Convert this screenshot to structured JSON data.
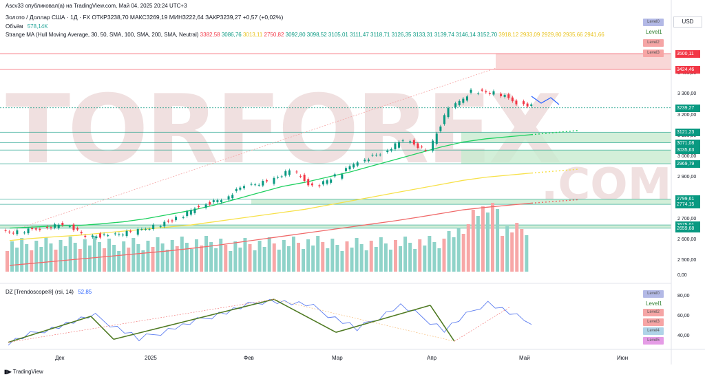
{
  "header": {
    "publish_line": "Ascv33 опубликовал(а) на TradingView.com, Май 04, 2025 20:24 UTC+3",
    "symbol_line": "Золото / Доллар США · 1Д · FX ОТКР3238,70 МАКС3269,19 МИН3222,64 ЗАКР3239,27 +0,57 (+0,02%)",
    "volume_label": "Объём",
    "volume_value": "578,14K",
    "ma_label": "Strange MA (Hull Moving Average, 30, 50, SMA, 100, SMA, 200, SMA, Neutral)",
    "ma_values": [
      "3382,58",
      "3086,76",
      "3013,11",
      "2750,82",
      "3092,80",
      "3098,52",
      "3105,01",
      "3111,47",
      "3118,71",
      "3126,35",
      "3133,31",
      "3139,74",
      "3146,14",
      "3152,70",
      "3918,12",
      "2933,09",
      "2929,80",
      "2935,66",
      "2941,66"
    ],
    "ma_colors": [
      "#f23645",
      "#089981",
      "#e8c21b",
      "#f23645",
      "#089981",
      "#089981",
      "#089981",
      "#089981",
      "#089981",
      "#089981",
      "#089981",
      "#089981",
      "#089981",
      "#089981",
      "#e8c21b",
      "#e8c21b",
      "#e8c21b",
      "#e8c21b",
      "#e8c21b"
    ]
  },
  "currency": "USD",
  "watermark": {
    "main": "TORFOREX",
    "sub": ".COM"
  },
  "levels_top": [
    "Level0",
    "Level1",
    "Level2",
    "Level3"
  ],
  "levels_bottom": [
    "Level0",
    "Level1",
    "Level2",
    "Level3",
    "Level4",
    "Level5"
  ],
  "level_colors": [
    "#b3b9e6",
    "#c8e6c9",
    "#f5a5a5",
    "#f7a5a5",
    "#b0d4e8",
    "#e59ce6"
  ],
  "price_tags": [
    {
      "label": "3500,11",
      "color": "#f23645"
    },
    {
      "label": "3424,46",
      "color": "#f23645"
    },
    {
      "label": "3239,27",
      "color": "#089981"
    },
    {
      "label": "3121,23",
      "color": "#089981"
    },
    {
      "label": "3071,08",
      "color": "#089981"
    },
    {
      "label": "3035,63",
      "color": "#089981"
    },
    {
      "label": "2969,79",
      "color": "#089981"
    },
    {
      "label": "2799,61",
      "color": "#089981"
    },
    {
      "label": "2774,15",
      "color": "#089981"
    },
    {
      "label": "2675,01",
      "color": "#089981"
    },
    {
      "label": "2659,68",
      "color": "#089981"
    }
  ],
  "price_axis": [
    "3 400,00",
    "3 300,00",
    "3 200,00",
    "3 100,00",
    "3 000,00",
    "2 900,00",
    "2 800,00",
    "2 700,00",
    "2 600,00",
    "2 500,00",
    "0,00"
  ],
  "x_axis": [
    "Дек",
    "2025",
    "Фев",
    "Мар",
    "Апр",
    "Май",
    "Июн"
  ],
  "indicator": {
    "label": "DZ [Trendoscope®] (rsi, 14)",
    "value": "52,85",
    "axis": [
      "80,00",
      "60,00",
      "40,00"
    ]
  },
  "footer": "TradingView",
  "chart_data": [
    {
      "type": "candlestick",
      "title": "Золото / Доллар США · 1Д · FX",
      "x": [
        "2024-11-25",
        "2024-12-02",
        "2024-12-09",
        "2024-12-16",
        "2024-12-23",
        "2024-12-30",
        "2025-01-06",
        "2025-01-13",
        "2025-01-20",
        "2025-01-27",
        "2025-02-03",
        "2025-02-10",
        "2025-02-17",
        "2025-02-24",
        "2025-03-03",
        "2025-03-10",
        "2025-03-17",
        "2025-03-24",
        "2025-03-31",
        "2025-04-07",
        "2025-04-14",
        "2025-04-21",
        "2025-04-28",
        "2025-05-02"
      ],
      "close": [
        2640,
        2660,
        2680,
        2620,
        2625,
        2640,
        2670,
        2705,
        2770,
        2800,
        2865,
        2885,
        2935,
        2860,
        2910,
        2985,
        3020,
        3085,
        3035,
        3235,
        3320,
        3310,
        3265,
        3239.27
      ],
      "ylim": [
        2450,
        3520
      ],
      "support_resistance": [
        3500.11,
        3424.46,
        3121.23,
        3071.08,
        3035.63,
        2969.79,
        2799.61,
        2774.15,
        2675.01,
        2659.68
      ],
      "moving_averages": [
        {
          "name": "SMA 50",
          "color": "#1fd060",
          "values": [
            2660,
            2665,
            2670,
            2672,
            2680,
            2690,
            2705,
            2725,
            2745,
            2770,
            2800,
            2830,
            2860,
            2880,
            2905,
            2930,
            2960,
            2990,
            3020,
            3050,
            3075,
            3090,
            3100,
            3110
          ]
        },
        {
          "name": "SMA 100",
          "color": "#f7e14a",
          "values": [
            2600,
            2610,
            2618,
            2625,
            2635,
            2645,
            2655,
            2665,
            2675,
            2690,
            2705,
            2720,
            2735,
            2750,
            2770,
            2790,
            2810,
            2830,
            2850,
            2870,
            2890,
            2905,
            2915,
            2925
          ]
        },
        {
          "name": "SMA 200",
          "color": "#f06a6a",
          "values": [
            2480,
            2490,
            2500,
            2510,
            2520,
            2530,
            2540,
            2550,
            2562,
            2575,
            2590,
            2605,
            2620,
            2635,
            2650,
            2665,
            2680,
            2695,
            2712,
            2730,
            2748,
            2760,
            2770,
            2780
          ]
        }
      ]
    },
    {
      "type": "line",
      "title": "DZ [Trendoscope®] (rsi, 14)",
      "x": [
        "2024-11-25",
        "2024-12-09",
        "2024-12-23",
        "2025-01-06",
        "2025-01-20",
        "2025-02-03",
        "2025-02-17",
        "2025-03-03",
        "2025-03-17",
        "2025-03-31",
        "2025-04-14",
        "2025-04-28",
        "2025-05-02"
      ],
      "values": [
        35,
        50,
        61,
        38,
        52,
        66,
        78,
        70,
        48,
        72,
        48,
        76,
        52.85
      ],
      "ylim": [
        30,
        85
      ]
    }
  ]
}
